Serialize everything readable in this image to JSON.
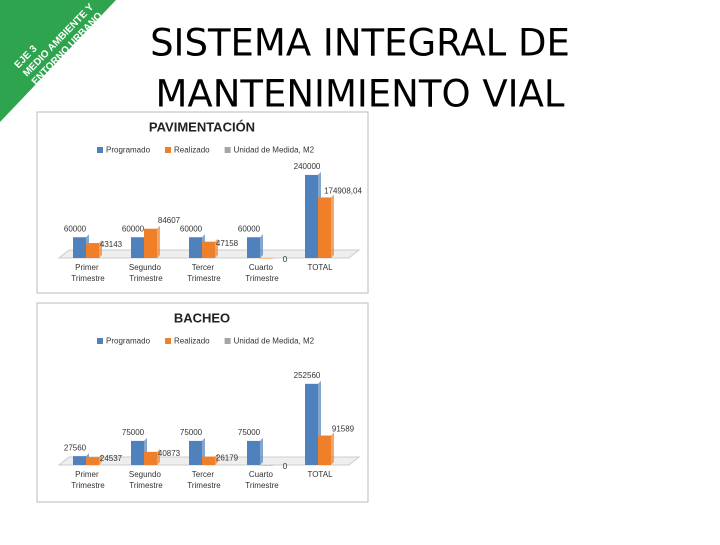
{
  "banner": {
    "lines": [
      "EJE 3",
      "MEDIO AMBIENTE Y",
      "ENTORNO URBANO"
    ]
  },
  "header": {
    "title_lines": [
      "SISTEMA INTEGRAL DE",
      "MANTENIMIENTO VIAL"
    ]
  },
  "chart_data": [
    {
      "type": "bar",
      "title": "PAVIMENTACIÓN",
      "categories": [
        "Primer Trimestre",
        "Segundo Trimestre",
        "Tercer Trimestre",
        "Cuarto Trimestre",
        "TOTAL"
      ],
      "series": [
        {
          "name": "Programado",
          "color": "#4f81bd",
          "values": [
            60000,
            60000,
            60000,
            60000,
            240000
          ]
        },
        {
          "name": "Realizado",
          "color": "#f07f2a",
          "values": [
            43143,
            84607,
            47158,
            0,
            174908.04
          ],
          "value_labels": [
            "43143",
            "84607",
            "47158",
            "0",
            "174908,04"
          ]
        },
        {
          "name": "Unidad de Medida, M2",
          "color": "#a5a5a5",
          "values": [
            null,
            null,
            null,
            null,
            null
          ]
        }
      ],
      "ylim": [
        0,
        260000
      ]
    },
    {
      "type": "bar",
      "title": "BACHEO",
      "categories": [
        "Primer Trimestre",
        "Segundo Trimestre",
        "Tercer Trimestre",
        "Cuarto Trimestre",
        "TOTAL"
      ],
      "series": [
        {
          "name": "Programado",
          "color": "#4f81bd",
          "values": [
            27560,
            75000,
            75000,
            75000,
            252560
          ]
        },
        {
          "name": "Realizado",
          "color": "#f07f2a",
          "values": [
            24537,
            40873,
            26179,
            0,
            91589
          ]
        },
        {
          "name": "Unidad de Medida, M2",
          "color": "#a5a5a5",
          "values": [
            null,
            null,
            null,
            null,
            null
          ]
        }
      ],
      "ylim": [
        0,
        280000
      ]
    }
  ]
}
